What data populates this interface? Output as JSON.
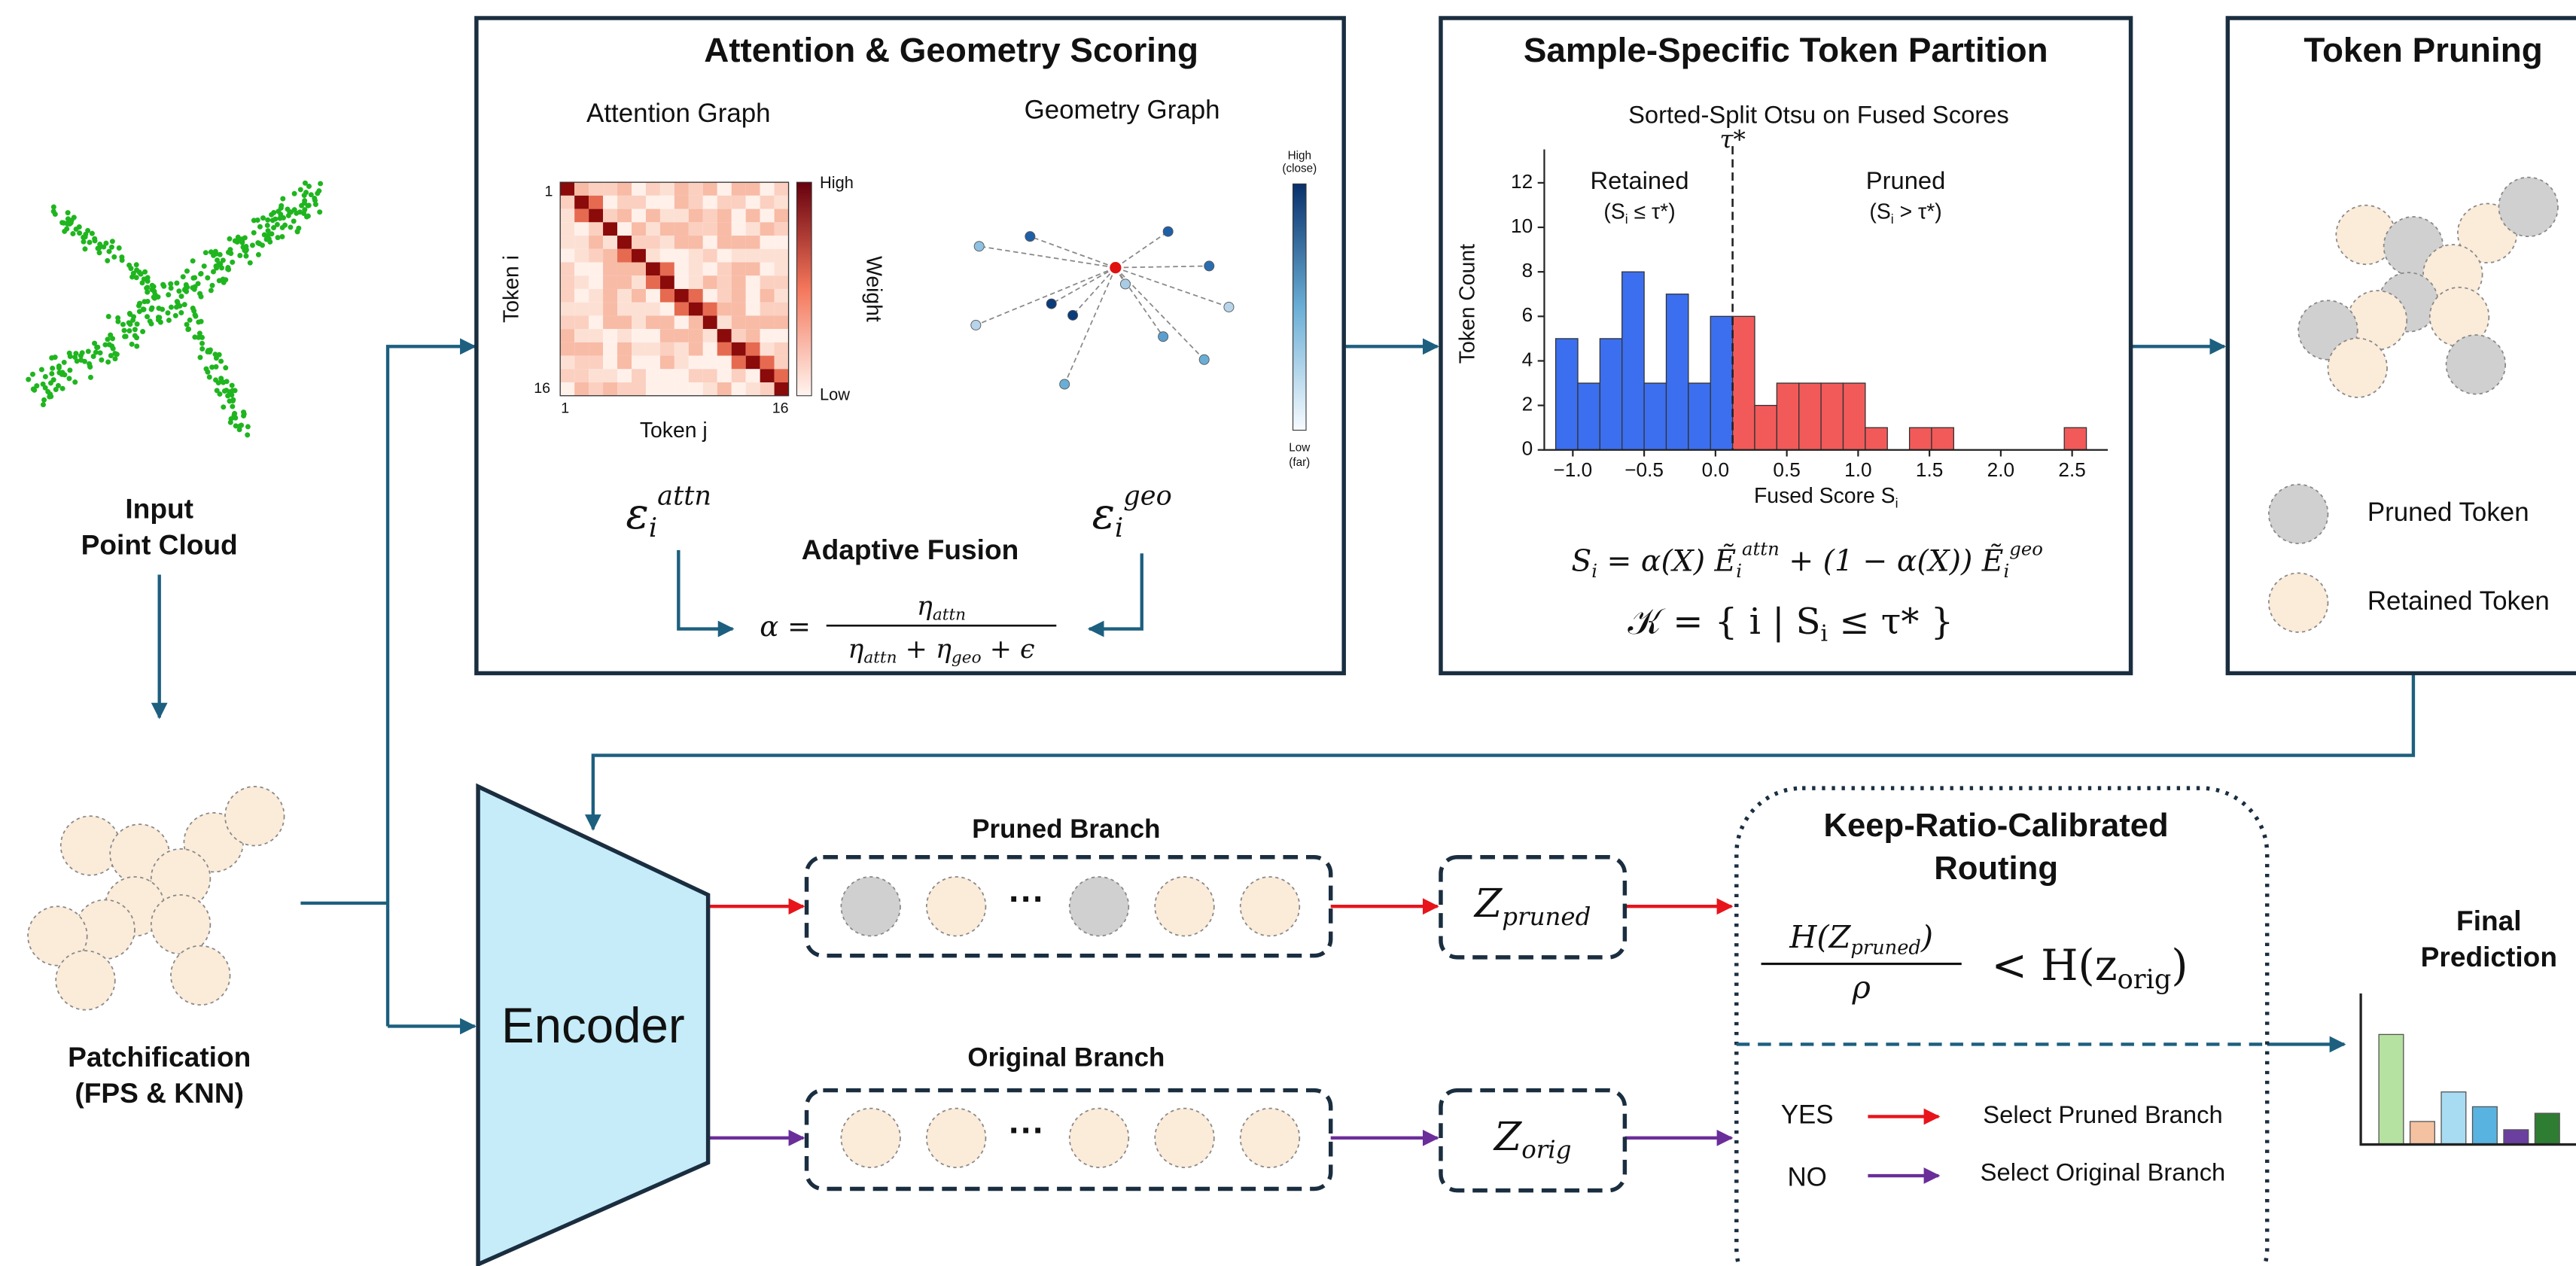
{
  "input": {
    "lines": [
      "Input",
      "Point Cloud"
    ]
  },
  "patchification": {
    "lines": [
      "Patchification",
      "(FPS & KNN)"
    ]
  },
  "scoring": {
    "title": "Attention & Geometry Scoring",
    "attention_graph": {
      "title": "Attention Graph",
      "y_label": "Token i",
      "x_label": "Token j",
      "ticks": [
        "1",
        "16",
        "1",
        "16"
      ],
      "colorbar": {
        "high": "High",
        "low": "Low",
        "label": "Weight"
      }
    },
    "geometry_graph": {
      "title": "Geometry Graph",
      "colorbar": {
        "high": [
          "High",
          "(close)"
        ],
        "low": [
          "Low",
          "(far)"
        ]
      }
    },
    "attn_score": [
      {
        "base": "ε",
        "sub": "i",
        "sup": "attn"
      }
    ],
    "geo_score": [
      {
        "base": "ε",
        "sub": "i",
        "sup": "geo"
      }
    ],
    "fusion": {
      "title": "Adaptive Fusion",
      "lhs": "α =",
      "numerator": [
        {
          "base": "η",
          "sub": "attn"
        }
      ],
      "denominator": [
        {
          "base": "η",
          "sub": "attn"
        },
        " + ",
        {
          "base": "η",
          "sub": "geo"
        },
        " + ϵ"
      ]
    }
  },
  "partition": {
    "title": "Sample-Specific Token Partition",
    "histogram": {
      "title": "Sorted-Split Otsu on Fused Scores",
      "x_label": [
        "Fused Score ",
        {
          "base": "S",
          "sub": "i"
        }
      ],
      "y_label": "Token Count",
      "bins": [
        -1.12,
        -0.965,
        -0.81,
        -0.655,
        -0.5,
        -0.345,
        -0.19,
        -0.035,
        0.12,
        0.275,
        0.43,
        0.585,
        0.74,
        0.895,
        1.05,
        1.205,
        1.36,
        1.515,
        1.67,
        1.825,
        1.98,
        2.135,
        2.29,
        2.445,
        2.6
      ],
      "counts": [
        5,
        3,
        5,
        8,
        3,
        7,
        3,
        6,
        6,
        2,
        3,
        3,
        3,
        3,
        1,
        0,
        1,
        1,
        0,
        0,
        0,
        0,
        0,
        1
      ],
      "threshold": 0.12,
      "threshold_label": "τ*",
      "colors": {
        "retained": "#3b6ff0",
        "pruned": "#f25a5a"
      },
      "retained": {
        "label": "Retained",
        "note": [
          "(",
          {
            "base": "S",
            "sub": "i"
          },
          " ≤ τ*)"
        ]
      },
      "pruned": {
        "label": "Pruned",
        "note": [
          "(",
          {
            "base": "S",
            "sub": "i"
          },
          " > τ*)"
        ]
      },
      "xlim": [
        -1.2,
        2.75
      ],
      "ylim": [
        0,
        13.5
      ],
      "xticks": [
        {
          "value": -1,
          "label": "−1.0"
        },
        {
          "value": -0.5,
          "label": "−0.5"
        },
        {
          "value": 0,
          "label": "0.0"
        },
        0.5,
        {
          "value": 1,
          "label": "1.0"
        },
        1.5,
        {
          "value": 2,
          "label": "2.0"
        },
        2.5
      ],
      "yticks": [
        0,
        2,
        4,
        6,
        8,
        10,
        12
      ]
    },
    "score_formula": [
      {
        "base": "S",
        "sub": "i"
      },
      " = α(X) ",
      {
        "base": "Ẽ",
        "sub": "i",
        "sup": "attn"
      },
      " + (1 − α(X)) ",
      {
        "base": "Ẽ",
        "sub": "i",
        "sup": "geo"
      }
    ],
    "keep_set": [
      "𝒦 = { i | ",
      {
        "base": "S",
        "sub": "i"
      },
      " ≤ τ* }"
    ]
  },
  "pruning": {
    "title": "Token Pruning",
    "legend": [
      "Pruned Token",
      "Retained Token"
    ]
  },
  "encoder": {
    "label": "Encoder"
  },
  "pruned_branch": {
    "title": "Pruned Branch",
    "ellipsis": "···",
    "latent": [
      {
        "base": "Z",
        "sub": "pruned"
      }
    ]
  },
  "original_branch": {
    "title": "Original Branch",
    "ellipsis": "···",
    "latent": [
      {
        "base": "Z",
        "sub": "orig"
      }
    ]
  },
  "routing": {
    "title_lines": [
      "Keep-Ratio-Calibrated",
      "Routing"
    ],
    "numerator": [
      "H(",
      {
        "base": "Z",
        "sub": "pruned"
      },
      ")"
    ],
    "denominator": "ρ",
    "rhs": [
      "< H(",
      {
        "base": "z",
        "sub": "orig"
      },
      ")"
    ],
    "yes": "YES",
    "yes_action": "Select Pruned Branch",
    "no": "NO",
    "no_action": "Select Original Branch"
  },
  "final": {
    "lines": [
      "Final",
      "Prediction"
    ]
  }
}
